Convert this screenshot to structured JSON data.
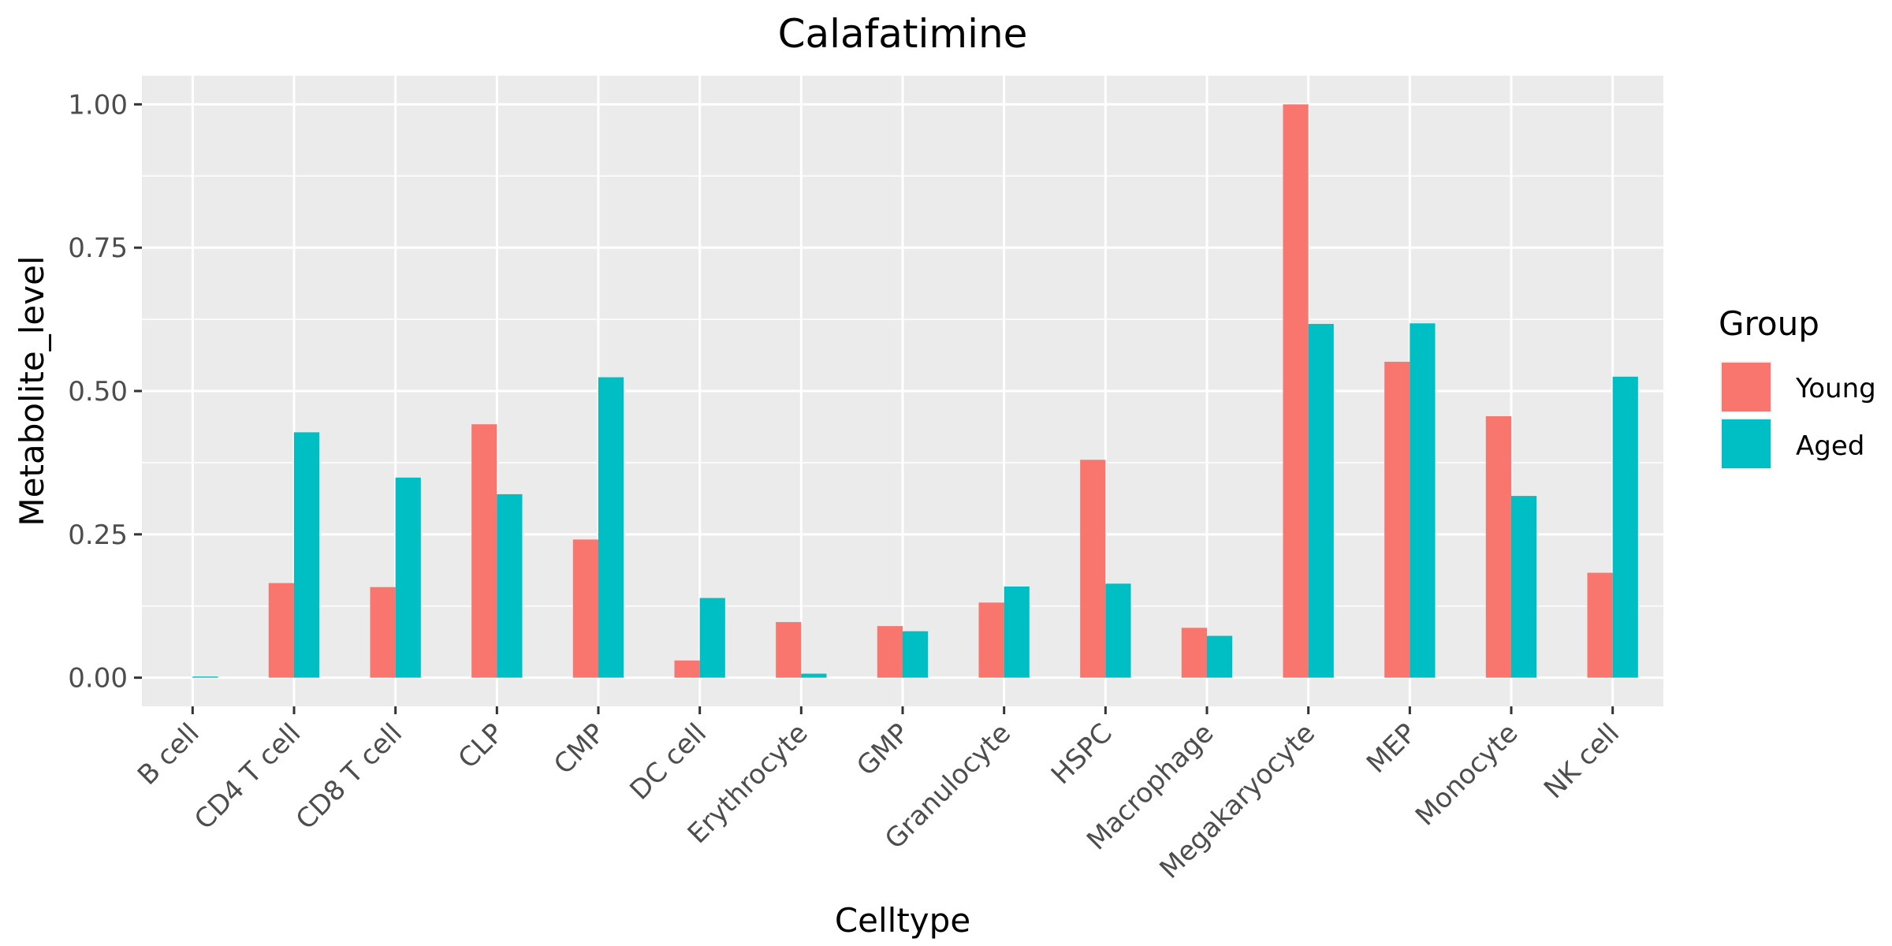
{
  "chart_data": {
    "type": "bar",
    "title": "Calafatimine",
    "xlabel": "Celltype",
    "ylabel": "Metabolite_level",
    "categories": [
      "B cell",
      "CD4 T cell",
      "CD8 T cell",
      "CLP",
      "CMP",
      "DC cell",
      "Erythrocyte",
      "GMP",
      "Granulocyte",
      "HSPC",
      "Macrophage",
      "Megakaryocyte",
      "MEP",
      "Monocyte",
      "NK cell"
    ],
    "series": [
      {
        "name": "Young",
        "color": "#F8766D",
        "values": [
          0.0,
          0.165,
          0.158,
          0.442,
          0.241,
          0.03,
          0.097,
          0.09,
          0.131,
          0.38,
          0.087,
          1.0,
          0.551,
          0.456,
          0.183
        ]
      },
      {
        "name": "Aged",
        "color": "#00BFC4",
        "values": [
          0.002,
          0.428,
          0.349,
          0.32,
          0.524,
          0.139,
          0.007,
          0.081,
          0.159,
          0.164,
          0.073,
          0.617,
          0.618,
          0.317,
          0.525
        ]
      }
    ],
    "ylim": [
      -0.05,
      1.05
    ],
    "yticks": [
      0.0,
      0.25,
      0.5,
      0.75,
      1.0
    ],
    "ytick_labels": [
      "0.00",
      "0.25",
      "0.50",
      "0.75",
      "1.00"
    ],
    "grid": true,
    "legend": {
      "title": "Group",
      "placement": "right"
    }
  }
}
